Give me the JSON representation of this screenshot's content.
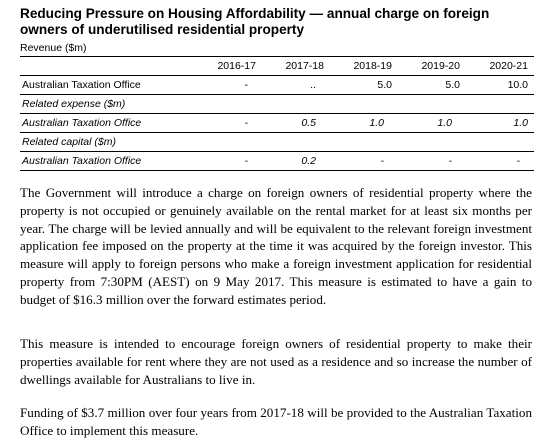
{
  "title": "Reducing Pressure on Housing Affordability — annual charge on foreign owners of underutilised residential property",
  "revenue_label": "Revenue ($m)",
  "table": {
    "columns": [
      "2016-17",
      "2017-18",
      "2018-19",
      "2019-20",
      "2020-21"
    ],
    "rows": [
      {
        "label": "Australian Taxation Office",
        "values": [
          "-",
          "..",
          "5.0",
          "5.0",
          "10.0"
        ]
      },
      {
        "label": "Related expense ($m)",
        "values": []
      },
      {
        "label": "Australian Taxation Office",
        "values": [
          "-",
          "0.5",
          "1.0",
          "1.0",
          "1.0"
        ]
      },
      {
        "label": "Related capital ($m)",
        "values": []
      },
      {
        "label": "Australian Taxation Office",
        "values": [
          "-",
          "0.2",
          "-",
          "-",
          "-"
        ]
      }
    ]
  },
  "paragraphs": [
    "The Government will introduce a charge on foreign owners of residential property where the property is not occupied or genuinely available on the rental market for at least six months per year. The charge will be levied annually and will be equivalent to the relevant foreign investment application fee imposed on the property at the time it was acquired by the foreign investor. This measure will apply to foreign persons who make a foreign investment application for residential property from 7:30PM (AEST) on 9 May 2017. This measure is estimated to have a gain to budget of $16.3 million over the forward estimates period.",
    "This measure is intended to encourage foreign owners of residential property to make their properties available for rent where they are not used as a residence and so increase the number of dwellings available for Australians to live in.",
    "Funding of $3.7 million over four years from 2017-18 will be provided to the Australian Taxation Office to implement this measure."
  ]
}
